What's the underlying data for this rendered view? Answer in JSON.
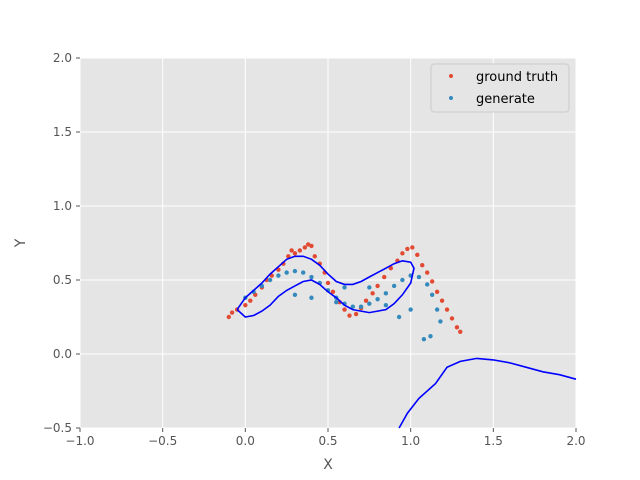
{
  "chart_data": {
    "type": "scatter",
    "title": "",
    "xlabel": "X",
    "ylabel": "Y",
    "xlim": [
      -1.0,
      2.0
    ],
    "ylim": [
      -0.5,
      2.0
    ],
    "xticks": [
      -1.0,
      -0.5,
      0.0,
      0.5,
      1.0,
      1.5,
      2.0
    ],
    "yticks": [
      -0.5,
      0.0,
      0.5,
      1.0,
      1.5,
      2.0
    ],
    "xtick_labels": [
      "−1.0",
      "−0.5",
      "0.0",
      "0.5",
      "1.0",
      "1.5",
      "2.0"
    ],
    "ytick_labels": [
      "−0.5",
      "0.0",
      "0.5",
      "1.0",
      "1.5",
      "2.0"
    ],
    "grid": true,
    "legend_position": "top-right",
    "series": [
      {
        "name": "ground truth",
        "kind": "scatter",
        "color": "#E24A33",
        "points": [
          [
            -0.1,
            0.25
          ],
          [
            -0.08,
            0.28
          ],
          [
            -0.05,
            0.3
          ],
          [
            0.0,
            0.33
          ],
          [
            0.03,
            0.36
          ],
          [
            0.06,
            0.4
          ],
          [
            0.1,
            0.45
          ],
          [
            0.13,
            0.5
          ],
          [
            0.16,
            0.53
          ],
          [
            0.2,
            0.57
          ],
          [
            0.23,
            0.61
          ],
          [
            0.26,
            0.66
          ],
          [
            0.28,
            0.7
          ],
          [
            0.3,
            0.68
          ],
          [
            0.33,
            0.7
          ],
          [
            0.36,
            0.72
          ],
          [
            0.38,
            0.74
          ],
          [
            0.4,
            0.73
          ],
          [
            0.42,
            0.66
          ],
          [
            0.45,
            0.61
          ],
          [
            0.48,
            0.55
          ],
          [
            0.5,
            0.48
          ],
          [
            0.53,
            0.42
          ],
          [
            0.57,
            0.35
          ],
          [
            0.6,
            0.3
          ],
          [
            0.63,
            0.26
          ],
          [
            0.67,
            0.27
          ],
          [
            0.7,
            0.31
          ],
          [
            0.73,
            0.36
          ],
          [
            0.77,
            0.41
          ],
          [
            0.8,
            0.46
          ],
          [
            0.84,
            0.52
          ],
          [
            0.88,
            0.58
          ],
          [
            0.92,
            0.63
          ],
          [
            0.95,
            0.68
          ],
          [
            0.98,
            0.71
          ],
          [
            1.01,
            0.72
          ],
          [
            1.04,
            0.67
          ],
          [
            1.07,
            0.6
          ],
          [
            1.1,
            0.55
          ],
          [
            1.13,
            0.49
          ],
          [
            1.16,
            0.42
          ],
          [
            1.19,
            0.36
          ],
          [
            1.22,
            0.3
          ],
          [
            1.25,
            0.24
          ],
          [
            1.28,
            0.18
          ],
          [
            1.3,
            0.15
          ]
        ]
      },
      {
        "name": "generate",
        "kind": "scatter",
        "color": "#348ABD",
        "points": [
          [
            0.0,
            0.38
          ],
          [
            0.05,
            0.42
          ],
          [
            0.1,
            0.46
          ],
          [
            0.15,
            0.5
          ],
          [
            0.2,
            0.53
          ],
          [
            0.25,
            0.55
          ],
          [
            0.3,
            0.56
          ],
          [
            0.35,
            0.55
          ],
          [
            0.4,
            0.52
          ],
          [
            0.45,
            0.48
          ],
          [
            0.5,
            0.43
          ],
          [
            0.55,
            0.38
          ],
          [
            0.6,
            0.34
          ],
          [
            0.65,
            0.32
          ],
          [
            0.7,
            0.32
          ],
          [
            0.75,
            0.34
          ],
          [
            0.8,
            0.37
          ],
          [
            0.85,
            0.41
          ],
          [
            0.9,
            0.46
          ],
          [
            0.95,
            0.5
          ],
          [
            1.0,
            0.53
          ],
          [
            1.05,
            0.52
          ],
          [
            1.1,
            0.47
          ],
          [
            1.13,
            0.4
          ],
          [
            1.16,
            0.3
          ],
          [
            1.18,
            0.22
          ],
          [
            1.12,
            0.12
          ],
          [
            1.0,
            0.3
          ],
          [
            0.93,
            0.25
          ],
          [
            0.3,
            0.4
          ],
          [
            0.4,
            0.38
          ],
          [
            0.6,
            0.45
          ],
          [
            0.75,
            0.45
          ],
          [
            0.55,
            0.35
          ],
          [
            0.85,
            0.33
          ],
          [
            1.08,
            0.1
          ]
        ]
      },
      {
        "name": "",
        "kind": "line",
        "color": "#0000FF",
        "points": [
          [
            -0.05,
            0.3
          ],
          [
            0.0,
            0.38
          ],
          [
            0.05,
            0.43
          ],
          [
            0.1,
            0.48
          ],
          [
            0.15,
            0.54
          ],
          [
            0.2,
            0.59
          ],
          [
            0.25,
            0.64
          ],
          [
            0.3,
            0.66
          ],
          [
            0.35,
            0.66
          ],
          [
            0.4,
            0.64
          ],
          [
            0.45,
            0.6
          ],
          [
            0.5,
            0.54
          ],
          [
            0.55,
            0.49
          ],
          [
            0.6,
            0.47
          ],
          [
            0.65,
            0.47
          ],
          [
            0.7,
            0.49
          ],
          [
            0.75,
            0.52
          ],
          [
            0.8,
            0.55
          ],
          [
            0.85,
            0.58
          ],
          [
            0.9,
            0.61
          ],
          [
            0.95,
            0.63
          ],
          [
            1.0,
            0.62
          ],
          [
            1.02,
            0.58
          ],
          [
            1.0,
            0.48
          ],
          [
            0.95,
            0.4
          ],
          [
            0.9,
            0.34
          ],
          [
            0.85,
            0.3
          ],
          [
            0.8,
            0.29
          ],
          [
            0.75,
            0.28
          ],
          [
            0.7,
            0.29
          ],
          [
            0.65,
            0.3
          ],
          [
            0.6,
            0.33
          ],
          [
            0.55,
            0.38
          ],
          [
            0.5,
            0.42
          ],
          [
            0.45,
            0.47
          ],
          [
            0.4,
            0.5
          ],
          [
            0.35,
            0.49
          ],
          [
            0.3,
            0.46
          ],
          [
            0.25,
            0.43
          ],
          [
            0.2,
            0.39
          ],
          [
            0.15,
            0.33
          ],
          [
            0.1,
            0.29
          ],
          [
            0.05,
            0.26
          ],
          [
            0.0,
            0.25
          ],
          [
            -0.05,
            0.3
          ]
        ]
      },
      {
        "name": "",
        "kind": "line",
        "color": "#0000FF",
        "points": [
          [
            0.93,
            -0.5
          ],
          [
            0.98,
            -0.4
          ],
          [
            1.05,
            -0.3
          ],
          [
            1.15,
            -0.2
          ],
          [
            1.22,
            -0.09
          ],
          [
            1.3,
            -0.05
          ],
          [
            1.4,
            -0.03
          ],
          [
            1.5,
            -0.04
          ],
          [
            1.6,
            -0.06
          ],
          [
            1.7,
            -0.09
          ],
          [
            1.8,
            -0.12
          ],
          [
            1.9,
            -0.14
          ],
          [
            2.0,
            -0.17
          ]
        ]
      }
    ]
  }
}
